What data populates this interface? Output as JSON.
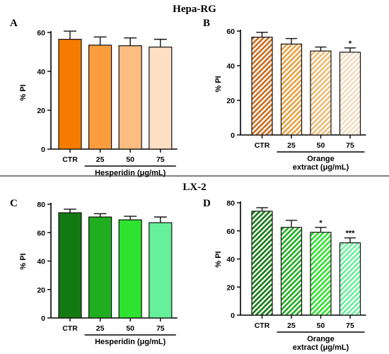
{
  "sections": [
    {
      "title": "Hepa-RG"
    },
    {
      "title": "LX-2"
    }
  ],
  "chart_data": [
    {
      "type": "bar",
      "panel": "A",
      "categories": [
        "CTR",
        "25",
        "50",
        "75"
      ],
      "values": [
        56.5,
        53.5,
        53.2,
        52.5
      ],
      "errors": [
        4.2,
        4.2,
        4.0,
        4.0
      ],
      "significance": [
        "",
        "",
        "",
        ""
      ],
      "ylabel": "% PI",
      "xlabel": "Hesperidin (μg/mL)",
      "xlabel_lines": [
        "Hesperidin (μg/mL)"
      ],
      "ylim": [
        0,
        60
      ],
      "yticks": [
        0,
        20,
        40,
        60
      ],
      "pattern": "solid",
      "colors": [
        "#f57c00",
        "#fb9d3c",
        "#fcbd80",
        "#fde0c4"
      ]
    },
    {
      "type": "bar",
      "panel": "B",
      "categories": [
        "CTR",
        "25",
        "50",
        "75"
      ],
      "values": [
        56.5,
        52.5,
        48.5,
        47.8
      ],
      "errors": [
        2.8,
        3.2,
        2.3,
        2.5
      ],
      "significance": [
        "",
        "",
        "",
        "*"
      ],
      "ylabel": "% PI",
      "xlabel": "Orange extract (μg/mL)",
      "xlabel_lines": [
        "Orange",
        "extract (μg/mL)"
      ],
      "ylim": [
        0,
        60
      ],
      "yticks": [
        0,
        20,
        40,
        60
      ],
      "pattern": "hatched",
      "colors": [
        "#cc6a1a",
        "#e8a040",
        "#efbc74",
        "#f2dcc0"
      ]
    },
    {
      "type": "bar",
      "panel": "C",
      "categories": [
        "CTR",
        "25",
        "50",
        "75"
      ],
      "values": [
        74,
        71,
        69,
        67
      ],
      "errors": [
        2.5,
        2.3,
        2.5,
        4.0
      ],
      "significance": [
        "",
        "",
        "",
        ""
      ],
      "ylabel": "% PI",
      "xlabel": "Hesperidin (μg/mL)",
      "xlabel_lines": [
        "Hesperidin (μg/mL)"
      ],
      "ylim": [
        0,
        80
      ],
      "yticks": [
        0,
        20,
        40,
        60,
        80
      ],
      "pattern": "solid",
      "colors": [
        "#137a13",
        "#1fae1f",
        "#2ee22e",
        "#66f09a"
      ]
    },
    {
      "type": "bar",
      "panel": "D",
      "categories": [
        "CTR",
        "25",
        "50",
        "75"
      ],
      "values": [
        74,
        62.5,
        59,
        51.5
      ],
      "errors": [
        2.5,
        5.0,
        3.5,
        3.5
      ],
      "significance": [
        "",
        "",
        "*",
        "***"
      ],
      "ylabel": "% PI",
      "xlabel": "Orange extract (μg/mL)",
      "xlabel_lines": [
        "Orange",
        "extract (μg/mL)"
      ],
      "ylim": [
        0,
        80
      ],
      "yticks": [
        0,
        20,
        40,
        60,
        80
      ],
      "pattern": "hatched",
      "colors": [
        "#137a13",
        "#1fae1f",
        "#2ee22e",
        "#66f09a"
      ]
    }
  ]
}
